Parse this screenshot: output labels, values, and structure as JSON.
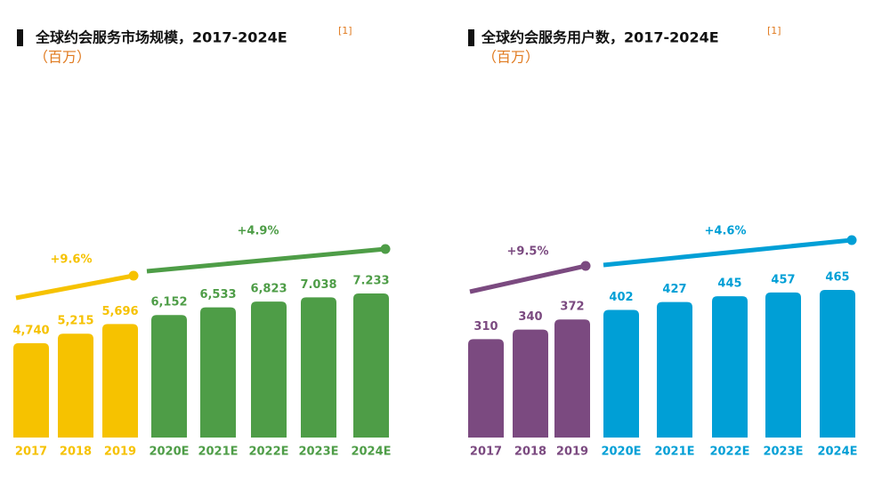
{
  "chart_data": [
    {
      "type": "bar",
      "title": "全球约会服务市场规模，2017-2024E",
      "title_note": "[1]",
      "subtitle": "（百万）",
      "categories": [
        "2017",
        "2018",
        "2019",
        "2020E",
        "2021E",
        "2022E",
        "2023E",
        "2024E"
      ],
      "values": [
        4740,
        5215,
        5696,
        6152,
        6533,
        6823,
        7038,
        7233
      ],
      "value_labels": [
        "4,740",
        "5,215",
        "5,696",
        "6,152",
        "6,533",
        "6,823",
        "7.038",
        "7.233"
      ],
      "colors": [
        "#f6c200",
        "#f6c200",
        "#f6c200",
        "#4e9d47",
        "#4e9d47",
        "#4e9d47",
        "#4e9d47",
        "#4e9d47"
      ],
      "annotations": [
        {
          "text": "+9.6%",
          "color": "#f6c200"
        },
        {
          "text": "+4.9%",
          "color": "#4e9d47"
        }
      ]
    },
    {
      "type": "bar",
      "title": "全球约会服务用户数，2017-2024E",
      "title_note": "[1]",
      "subtitle": "（百万）",
      "categories": [
        "2017",
        "2018",
        "2019",
        "2020E",
        "2021E",
        "2022E",
        "2023E",
        "2024E"
      ],
      "values": [
        310,
        340,
        372,
        402,
        427,
        445,
        457,
        465
      ],
      "colors": [
        "#7b4a80",
        "#7b4a80",
        "#7b4a80",
        "#009fd6",
        "#009fd6",
        "#009fd6",
        "#009fd6",
        "#009fd6"
      ],
      "annotations": [
        {
          "text": "+9.5%",
          "color": "#7b4a80"
        },
        {
          "text": "+4.6%",
          "color": "#009fd6"
        }
      ]
    }
  ]
}
